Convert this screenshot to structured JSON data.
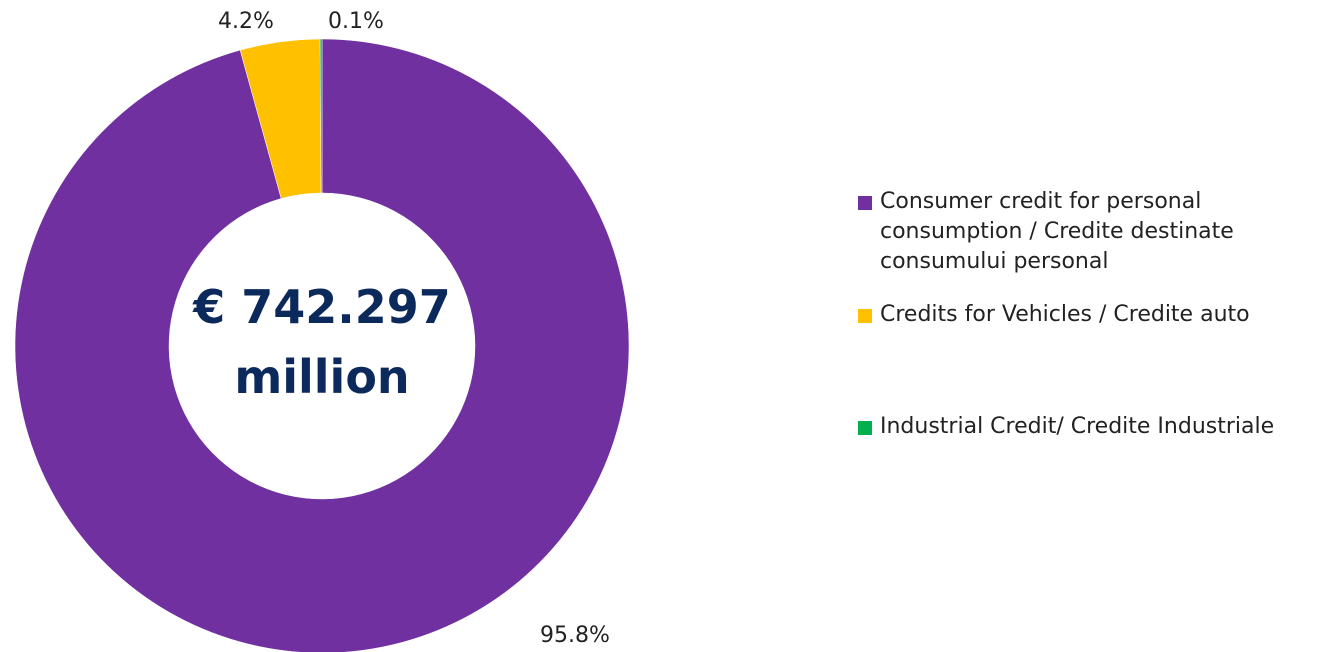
{
  "chart_data": {
    "type": "donut",
    "categories": [
      "Consumer credit for personal consumption / Credite destinate consumului personal",
      "Credits for Vehicles / Credite auto",
      "Industrial Credit/ Credite Industriale"
    ],
    "values": [
      95.8,
      4.2,
      0.1
    ],
    "value_labels": [
      "95.8%",
      "4.2%",
      "0.1%"
    ],
    "colors": [
      "#7030a0",
      "#ffc000",
      "#00b050"
    ],
    "center_text": [
      "€ 742.297",
      "million"
    ],
    "legend": "right"
  }
}
